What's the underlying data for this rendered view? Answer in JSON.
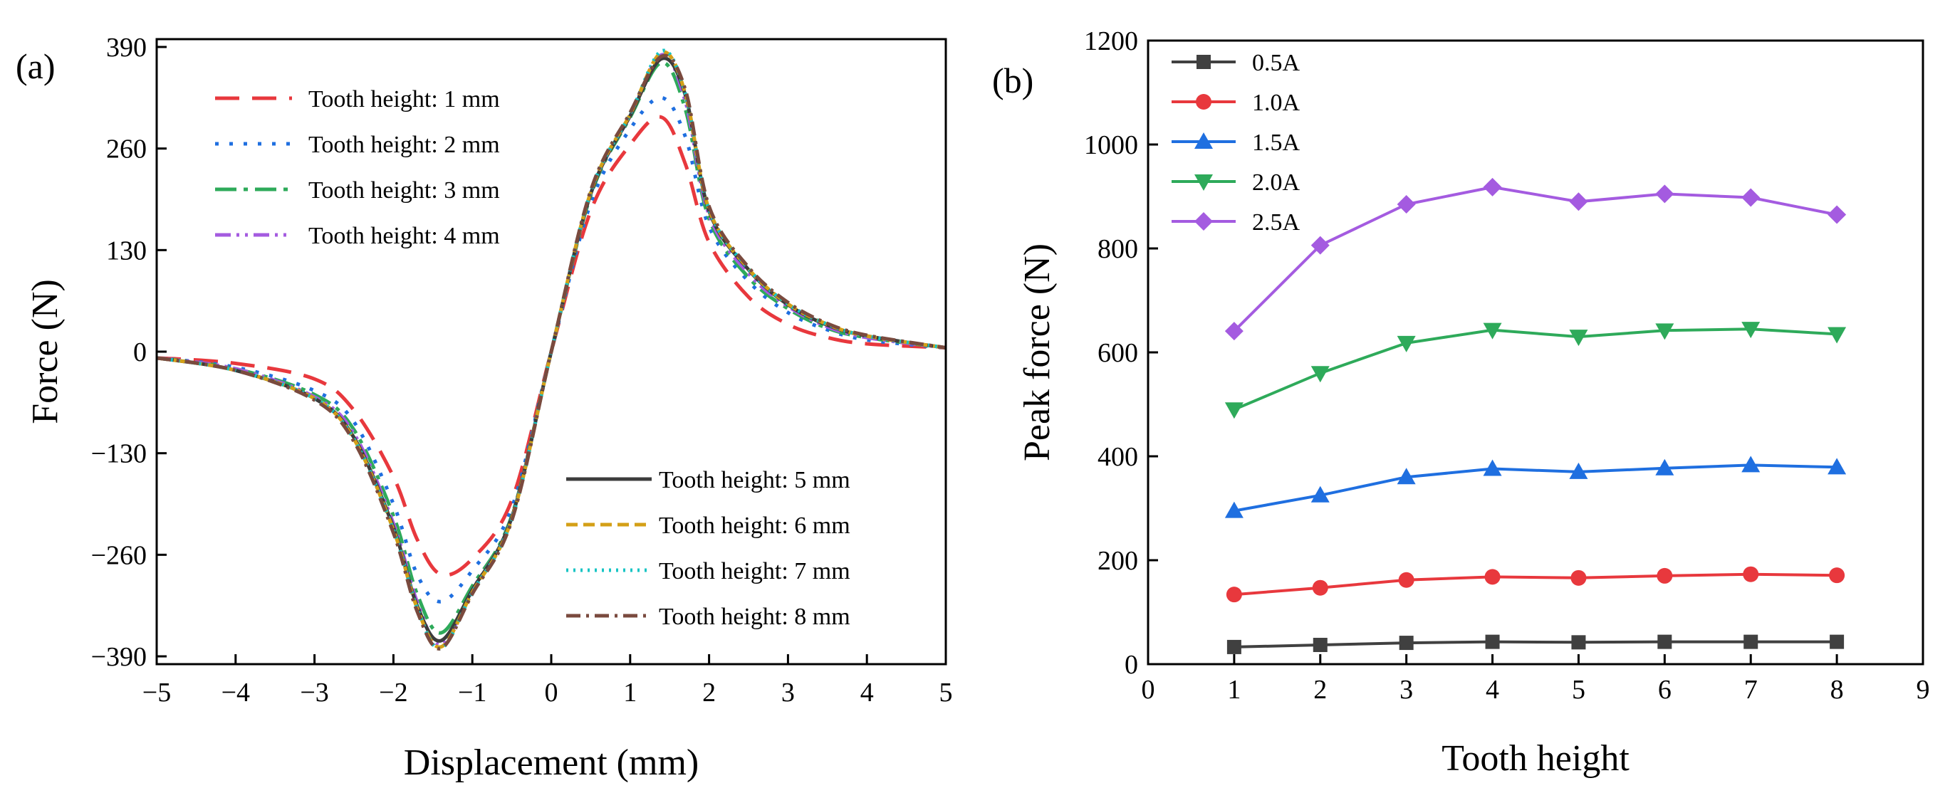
{
  "chart_data": [
    {
      "panel": "(a)",
      "type": "line",
      "xlabel": "Displacement (mm)",
      "ylabel": "Force (N)",
      "xlim": [
        -5,
        5
      ],
      "ylim": [
        -400,
        400
      ],
      "xticks": [
        -5,
        -4,
        -3,
        -2,
        -1,
        0,
        1,
        2,
        3,
        4,
        5
      ],
      "yticks": [
        -390,
        -260,
        -130,
        0,
        130,
        260,
        390
      ],
      "xtick_labels": [
        "−5",
        "−4",
        "−3",
        "−2",
        "−1",
        "0",
        "1",
        "2",
        "3",
        "4",
        "5"
      ],
      "ytick_labels": [
        "−390",
        "−260",
        "−130",
        "0",
        "130",
        "260",
        "390"
      ],
      "legend_top": "upper-left",
      "legend_bottom": "lower-right",
      "series": [
        {
          "name": "Tooth height: 1 mm",
          "color": "#e8383d",
          "dash": "34 18",
          "legend": "top",
          "x": [
            -5,
            -4,
            -3,
            -2.5,
            -2,
            -1.7,
            -1.4,
            -1.0,
            -0.5,
            0,
            0.5,
            1.0,
            1.4,
            1.7,
            2,
            2.5,
            3,
            3.5,
            4,
            5
          ],
          "y": [
            -8,
            -15,
            -35,
            -75,
            -160,
            -240,
            -285,
            -265,
            -190,
            0,
            180,
            265,
            300,
            240,
            140,
            70,
            35,
            18,
            10,
            5
          ]
        },
        {
          "name": "Tooth height: 2 mm",
          "color": "#1f6fe0",
          "dash": "5 15",
          "legend": "top",
          "x": [
            -5,
            -4,
            -3,
            -2.5,
            -2,
            -1.7,
            -1.4,
            -1.0,
            -0.5,
            0,
            0.5,
            1.0,
            1.4,
            1.7,
            2,
            2.5,
            3,
            3.5,
            4,
            5
          ],
          "y": [
            -8,
            -20,
            -50,
            -90,
            -195,
            -285,
            -320,
            -280,
            -200,
            0,
            190,
            285,
            325,
            275,
            160,
            90,
            50,
            28,
            15,
            5
          ]
        },
        {
          "name": "Tooth height: 3 mm",
          "color": "#2eaa5a",
          "dash": "30 10 6 10",
          "legend": "top",
          "x": [
            -5,
            -4,
            -3,
            -2.5,
            -2,
            -1.7,
            -1.4,
            -1.0,
            -0.5,
            0,
            0.5,
            1.0,
            1.4,
            1.7,
            2,
            2.5,
            3,
            3.5,
            4,
            5
          ],
          "y": [
            -8,
            -22,
            -55,
            -100,
            -210,
            -310,
            -360,
            -300,
            -210,
            0,
            200,
            300,
            370,
            310,
            170,
            95,
            55,
            30,
            18,
            5
          ]
        },
        {
          "name": "Tooth height: 4 mm",
          "color": "#a45be0",
          "dash": "22 8 4 8 4 8",
          "legend": "top",
          "x": [
            -5,
            -4,
            -3,
            -2.5,
            -2,
            -1.7,
            -1.4,
            -1.0,
            -0.5,
            0,
            0.5,
            1.0,
            1.4,
            1.7,
            2,
            2.5,
            3,
            3.5,
            4,
            5
          ],
          "y": [
            -8,
            -22,
            -58,
            -105,
            -220,
            -320,
            -375,
            -305,
            -212,
            0,
            202,
            302,
            380,
            320,
            175,
            100,
            58,
            32,
            18,
            5
          ]
        },
        {
          "name": "Tooth height: 5 mm",
          "color": "#3c3c3c",
          "dash": "",
          "legend": "bottom",
          "x": [
            -5,
            -4,
            -3,
            -2.5,
            -2,
            -1.7,
            -1.4,
            -1.0,
            -0.5,
            0,
            0.5,
            1.0,
            1.4,
            1.7,
            2,
            2.5,
            3,
            3.5,
            4,
            5
          ],
          "y": [
            -8,
            -24,
            -60,
            -110,
            -225,
            -325,
            -370,
            -305,
            -212,
            0,
            202,
            302,
            375,
            328,
            180,
            105,
            60,
            34,
            20,
            5
          ]
        },
        {
          "name": "Tooth height: 6 mm",
          "color": "#d4a017",
          "dash": "16 8",
          "legend": "bottom",
          "x": [
            -5,
            -4,
            -3,
            -2.5,
            -2,
            -1.7,
            -1.4,
            -1.0,
            -0.5,
            0,
            0.5,
            1.0,
            1.4,
            1.7,
            2,
            2.5,
            3,
            3.5,
            4,
            5
          ],
          "y": [
            -8,
            -24,
            -60,
            -112,
            -228,
            -328,
            -378,
            -308,
            -214,
            0,
            204,
            304,
            383,
            330,
            182,
            106,
            61,
            35,
            20,
            5
          ]
        },
        {
          "name": "Tooth height: 7 mm",
          "color": "#17c4c4",
          "dash": "3 7",
          "legend": "bottom",
          "x": [
            -5,
            -4,
            -3,
            -2.5,
            -2,
            -1.7,
            -1.4,
            -1.0,
            -0.5,
            0,
            0.5,
            1.0,
            1.4,
            1.7,
            2,
            2.5,
            3,
            3.5,
            4,
            5
          ],
          "y": [
            -8,
            -24,
            -60,
            -112,
            -228,
            -328,
            -380,
            -308,
            -214,
            0,
            204,
            304,
            385,
            330,
            182,
            106,
            61,
            35,
            20,
            5
          ]
        },
        {
          "name": "Tooth height: 8 mm",
          "color": "#7a4a3e",
          "dash": "20 8 4 8",
          "legend": "bottom",
          "x": [
            -5,
            -4,
            -3,
            -2.5,
            -2,
            -1.7,
            -1.4,
            -1.0,
            -0.5,
            0,
            0.5,
            1.0,
            1.4,
            1.7,
            2,
            2.5,
            3,
            3.5,
            4,
            5
          ],
          "y": [
            -8,
            -24,
            -62,
            -115,
            -232,
            -332,
            -380,
            -310,
            -216,
            0,
            206,
            306,
            378,
            335,
            186,
            108,
            63,
            36,
            21,
            5
          ]
        }
      ]
    },
    {
      "panel": "(b)",
      "type": "line",
      "xlabel": "Tooth height",
      "ylabel": "Peak force (N)",
      "xlim": [
        0,
        9
      ],
      "ylim": [
        0,
        1200
      ],
      "xticks": [
        0,
        1,
        2,
        3,
        4,
        5,
        6,
        7,
        8,
        9
      ],
      "yticks": [
        0,
        200,
        400,
        600,
        800,
        1000,
        1200
      ],
      "xtick_labels": [
        "0",
        "1",
        "2",
        "3",
        "4",
        "5",
        "6",
        "7",
        "8",
        "9"
      ],
      "ytick_labels": [
        "0",
        "200",
        "400",
        "600",
        "800",
        "1000",
        "1200"
      ],
      "legend": "top-left",
      "x": [
        1,
        2,
        3,
        4,
        5,
        6,
        7,
        8
      ],
      "series": [
        {
          "name": "0.5A",
          "color": "#404040",
          "marker": "square",
          "values": [
            33,
            37,
            41,
            43,
            42,
            43,
            43,
            43
          ]
        },
        {
          "name": "1.0A",
          "color": "#e8383d",
          "marker": "circle",
          "values": [
            134,
            147,
            162,
            168,
            166,
            170,
            173,
            171
          ]
        },
        {
          "name": "1.5A",
          "color": "#1f6fe0",
          "marker": "triangle-up",
          "values": [
            295,
            325,
            360,
            376,
            370,
            377,
            383,
            379
          ]
        },
        {
          "name": "2.0A",
          "color": "#2eaa5a",
          "marker": "triangle-down",
          "values": [
            490,
            560,
            618,
            643,
            630,
            642,
            645,
            635
          ]
        },
        {
          "name": "2.5A",
          "color": "#a45be0",
          "marker": "diamond",
          "values": [
            641,
            806,
            885,
            918,
            890,
            905,
            898,
            865
          ]
        }
      ]
    }
  ]
}
